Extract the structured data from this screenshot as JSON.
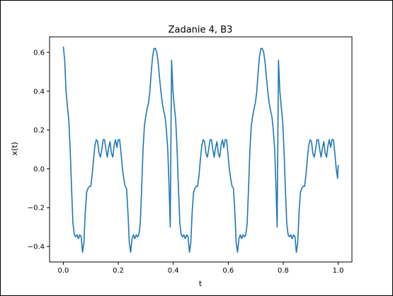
{
  "chart_data": {
    "type": "line",
    "title": "Zadanie 4, B3",
    "xlabel": "t",
    "ylabel": "x(t)",
    "xlim": [
      -0.05,
      1.05
    ],
    "ylim": [
      -0.48,
      0.68
    ],
    "xticks": [
      0.0,
      0.2,
      0.4,
      0.6,
      0.8,
      1.0
    ],
    "xtick_labels": [
      "0.0",
      "0.2",
      "0.4",
      "0.6",
      "0.8",
      "1.0"
    ],
    "yticks": [
      -0.4,
      -0.2,
      0.0,
      0.2,
      0.4,
      0.6
    ],
    "ytick_labels": [
      "−0.4",
      "−0.2",
      "0.0",
      "0.2",
      "0.4",
      "0.6"
    ],
    "grid": false,
    "line_color": "#1f77b4",
    "series": [
      {
        "period": 0.3889,
        "x": [
          0.0,
          0.005,
          0.01,
          0.015,
          0.02,
          0.025,
          0.03,
          0.035,
          0.04,
          0.045,
          0.05,
          0.055,
          0.06,
          0.065,
          0.07,
          0.075,
          0.08,
          0.085,
          0.09,
          0.095,
          0.1,
          0.105,
          0.11,
          0.115,
          0.12,
          0.125,
          0.13,
          0.135,
          0.14,
          0.145,
          0.15,
          0.155,
          0.16,
          0.165,
          0.17,
          0.175,
          0.18,
          0.185,
          0.19,
          0.195,
          0.2,
          0.205,
          0.21,
          0.215,
          0.22,
          0.225,
          0.23,
          0.235,
          0.24,
          0.245,
          0.25,
          0.255,
          0.26,
          0.265,
          0.27,
          0.275,
          0.28,
          0.285,
          0.29,
          0.295,
          0.3,
          0.305,
          0.31,
          0.315,
          0.32,
          0.325,
          0.33,
          0.335,
          0.34,
          0.345,
          0.35,
          0.355,
          0.36,
          0.365,
          0.37,
          0.375,
          0.38,
          0.385,
          0.389
        ],
        "y": [
          0.63,
          0.56,
          0.4,
          0.32,
          0.25,
          0.1,
          -0.1,
          -0.28,
          -0.34,
          -0.35,
          -0.34,
          -0.36,
          -0.34,
          -0.35,
          -0.43,
          -0.38,
          -0.22,
          -0.12,
          -0.1,
          -0.09,
          -0.09,
          -0.03,
          0.05,
          0.12,
          0.15,
          0.14,
          0.08,
          0.06,
          0.1,
          0.15,
          0.15,
          0.1,
          0.06,
          0.11,
          0.14,
          0.08,
          0.06,
          0.12,
          0.15,
          0.11,
          0.15,
          0.15,
          0.08,
          0.0,
          -0.05,
          -0.09,
          -0.1,
          -0.22,
          -0.38,
          -0.43,
          -0.36,
          -0.34,
          -0.36,
          -0.34,
          -0.35,
          -0.34,
          -0.28,
          -0.1,
          0.1,
          0.22,
          0.27,
          0.31,
          0.34,
          0.4,
          0.5,
          0.58,
          0.62,
          0.62,
          0.6,
          0.55,
          0.47,
          0.4,
          0.34,
          0.3,
          0.27,
          0.2,
          0.1,
          -0.1,
          -0.3
        ]
      }
    ]
  }
}
